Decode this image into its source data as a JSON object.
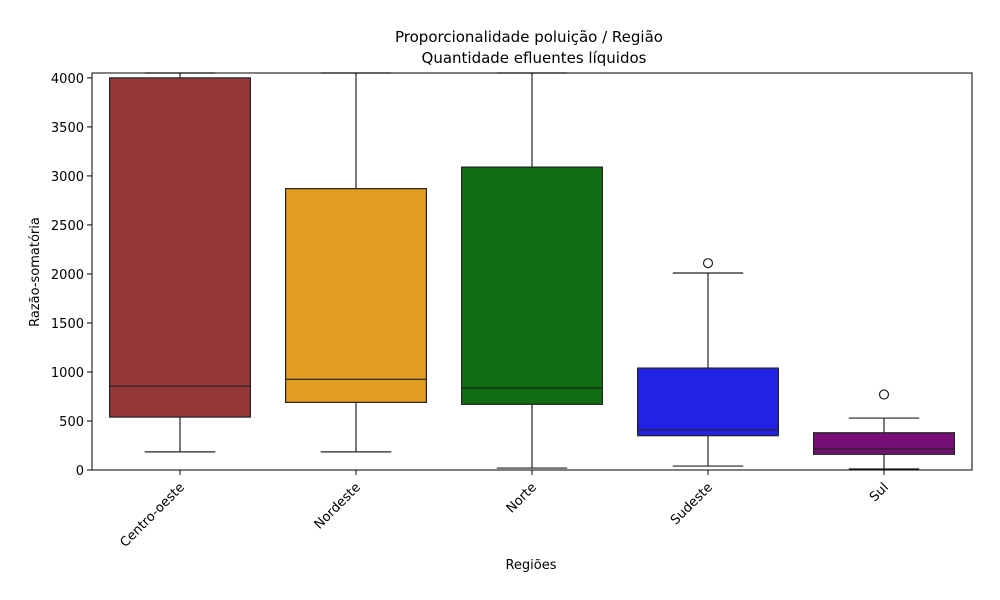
{
  "chart_data": {
    "type": "boxplot",
    "title": "Proporcionalidade poluição / Região",
    "subtitle": "Quantidade efluentes líquidos",
    "xlabel": "Regiões",
    "ylabel": "Razão-somatória",
    "ylim": [
      0,
      4050
    ],
    "yticks": [
      0,
      500,
      1000,
      1500,
      2000,
      2500,
      3000,
      3500,
      4000
    ],
    "grid": false,
    "categories": [
      "Centro-oeste",
      "Nordeste",
      "Norte",
      "Sudeste",
      "Sul"
    ],
    "boxes": [
      {
        "category": "Centro-oeste",
        "color": "#963838",
        "whisker_low": 185,
        "q1": 540,
        "median": 855,
        "q3": 4000,
        "whisker_high": 4050,
        "outliers": []
      },
      {
        "category": "Nordeste",
        "color": "#e19e21",
        "whisker_low": 185,
        "q1": 690,
        "median": 925,
        "q3": 2870,
        "whisker_high": 4050,
        "outliers": []
      },
      {
        "category": "Norte",
        "color": "#0f6e11",
        "whisker_low": 20,
        "q1": 670,
        "median": 835,
        "q3": 3090,
        "whisker_high": 4050,
        "outliers": []
      },
      {
        "category": "Sudeste",
        "color": "#2222e6",
        "whisker_low": 40,
        "q1": 350,
        "median": 410,
        "q3": 1040,
        "whisker_high": 2010,
        "outliers": [
          2110
        ]
      },
      {
        "category": "Sul",
        "color": "#760f76",
        "whisker_low": 10,
        "q1": 160,
        "median": 215,
        "q3": 380,
        "whisker_high": 530,
        "outliers": [
          770
        ]
      }
    ]
  }
}
